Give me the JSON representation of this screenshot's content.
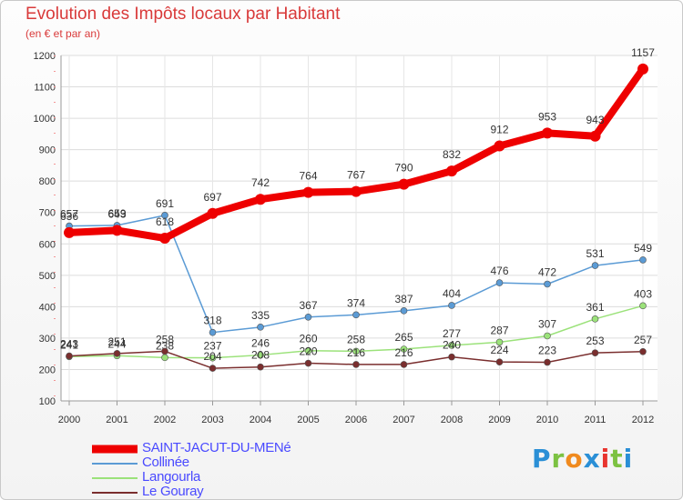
{
  "header": {
    "title": "Evolution des Impôts locaux par Habitant",
    "subtitle": "(en € et par an)"
  },
  "brand": {
    "name": "Proxiti",
    "colors": [
      "#2a8fd6",
      "#7cc242",
      "#f08a1e",
      "#2a8fd6",
      "#e8342e",
      "#7cc242",
      "#2a8fd6"
    ]
  },
  "chart_data": {
    "type": "line",
    "title": "Evolution des Impôts locaux par Habitant",
    "subtitle": "(en € et par an)",
    "xlabel": "",
    "ylabel": "",
    "x": [
      "2000",
      "2001",
      "2002",
      "2003",
      "2004",
      "2005",
      "2006",
      "2007",
      "2008",
      "2009",
      "2010",
      "2011",
      "2012"
    ],
    "ylim": [
      100,
      1200
    ],
    "yticks": [
      100,
      200,
      300,
      400,
      500,
      600,
      700,
      800,
      900,
      1000,
      1100,
      1200
    ],
    "grid": true,
    "legend_position": "bottom-left",
    "series": [
      {
        "name": "SAINT-JACUT-DU-MENé",
        "color": "#ee0000",
        "values": [
          636,
          643,
          618,
          697,
          742,
          764,
          767,
          790,
          832,
          912,
          953,
          943,
          1157
        ],
        "labels": [
          "636",
          "643",
          "618",
          "697",
          "742",
          "764",
          "767",
          "790",
          "832",
          "912",
          "953",
          "943",
          "1157"
        ]
      },
      {
        "name": "Collinée",
        "color": "#5b9bd5",
        "values": [
          657,
          659,
          691,
          318,
          335,
          367,
          374,
          387,
          404,
          476,
          472,
          531,
          549
        ],
        "labels": [
          "657",
          "659",
          "691",
          "318",
          "335",
          "367",
          "374",
          "387",
          "404",
          "476",
          "472",
          "531",
          "549"
        ]
      },
      {
        "name": "Langourla",
        "color": "#9be27a",
        "values": [
          241,
          244,
          238,
          237,
          246,
          260,
          258,
          265,
          277,
          287,
          307,
          361,
          403
        ],
        "labels": [
          "241",
          "244",
          "238",
          "237",
          "246",
          "260",
          "258",
          "265",
          "277",
          "287",
          "307",
          "361",
          "403"
        ]
      },
      {
        "name": "Le Gouray",
        "color": "#7a2e2e",
        "values": [
          243,
          251,
          258,
          204,
          208,
          220,
          216,
          216,
          240,
          224,
          223,
          253,
          257
        ],
        "labels": [
          "243",
          "251",
          "258",
          "204",
          "208",
          "220",
          "216",
          "216",
          "240",
          "224",
          "223",
          "253",
          "257"
        ]
      }
    ]
  }
}
